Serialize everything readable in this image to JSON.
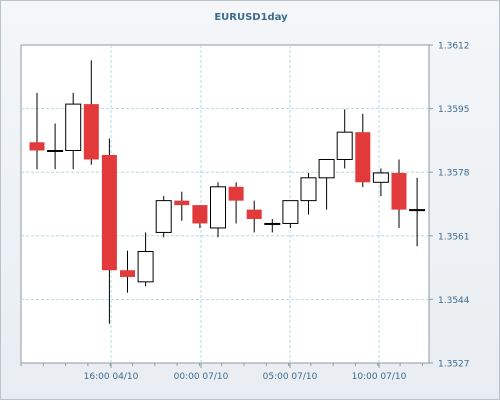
{
  "chart_data": {
    "type": "candlestick",
    "title": "EURUSD1day",
    "y_ticks": [
      "1.3612",
      "1.3595",
      "1.3578",
      "1.3561",
      "1.3544",
      "1.3527"
    ],
    "x_ticks": [
      "16:00 04/10",
      "00:00 07/10",
      "05:00 07/10",
      "10:00 07/10"
    ],
    "ylim": [
      1.3527,
      1.3612
    ],
    "grid": true,
    "colors": {
      "up_fill": "#ffffff",
      "down_fill": "#e23a3a",
      "grid": "#a9d3d8",
      "tick_label": "#3d6a90"
    },
    "candles": [
      {
        "open": 1.3586,
        "high": 1.35992,
        "low": 1.35788,
        "close": 1.35838
      },
      {
        "open": 1.35838,
        "high": 1.3591,
        "low": 1.35788,
        "close": 1.35838
      },
      {
        "open": 1.35838,
        "high": 1.35992,
        "low": 1.35788,
        "close": 1.35962
      },
      {
        "open": 1.35962,
        "high": 1.36079,
        "low": 1.358,
        "close": 1.35814
      },
      {
        "open": 1.35826,
        "high": 1.3587,
        "low": 1.35375,
        "close": 1.35518
      },
      {
        "open": 1.35518,
        "high": 1.3557,
        "low": 1.35458,
        "close": 1.355
      },
      {
        "open": 1.35487,
        "high": 1.35619,
        "low": 1.35475,
        "close": 1.35568
      },
      {
        "open": 1.35619,
        "high": 1.35716,
        "low": 1.35606,
        "close": 1.35704
      },
      {
        "open": 1.35704,
        "high": 1.35728,
        "low": 1.3565,
        "close": 1.35692
      },
      {
        "open": 1.35692,
        "high": 1.35692,
        "low": 1.35631,
        "close": 1.35643
      },
      {
        "open": 1.35631,
        "high": 1.35753,
        "low": 1.35606,
        "close": 1.35741
      },
      {
        "open": 1.35741,
        "high": 1.35753,
        "low": 1.35643,
        "close": 1.35704
      },
      {
        "open": 1.3568,
        "high": 1.35704,
        "low": 1.35619,
        "close": 1.35655
      },
      {
        "open": 1.35643,
        "high": 1.35655,
        "low": 1.35619,
        "close": 1.35643
      },
      {
        "open": 1.35643,
        "high": 1.35704,
        "low": 1.35631,
        "close": 1.35704
      },
      {
        "open": 1.35704,
        "high": 1.35778,
        "low": 1.35667,
        "close": 1.35765
      },
      {
        "open": 1.35765,
        "high": 1.35814,
        "low": 1.3568,
        "close": 1.35814
      },
      {
        "open": 1.35814,
        "high": 1.35948,
        "low": 1.3579,
        "close": 1.35887
      },
      {
        "open": 1.35887,
        "high": 1.35936,
        "low": 1.3574,
        "close": 1.35753
      },
      {
        "open": 1.35753,
        "high": 1.3579,
        "low": 1.35716,
        "close": 1.35778
      },
      {
        "open": 1.35778,
        "high": 1.35814,
        "low": 1.35631,
        "close": 1.3568
      },
      {
        "open": 1.3568,
        "high": 1.35765,
        "low": 1.35582,
        "close": 1.3568
      }
    ]
  }
}
